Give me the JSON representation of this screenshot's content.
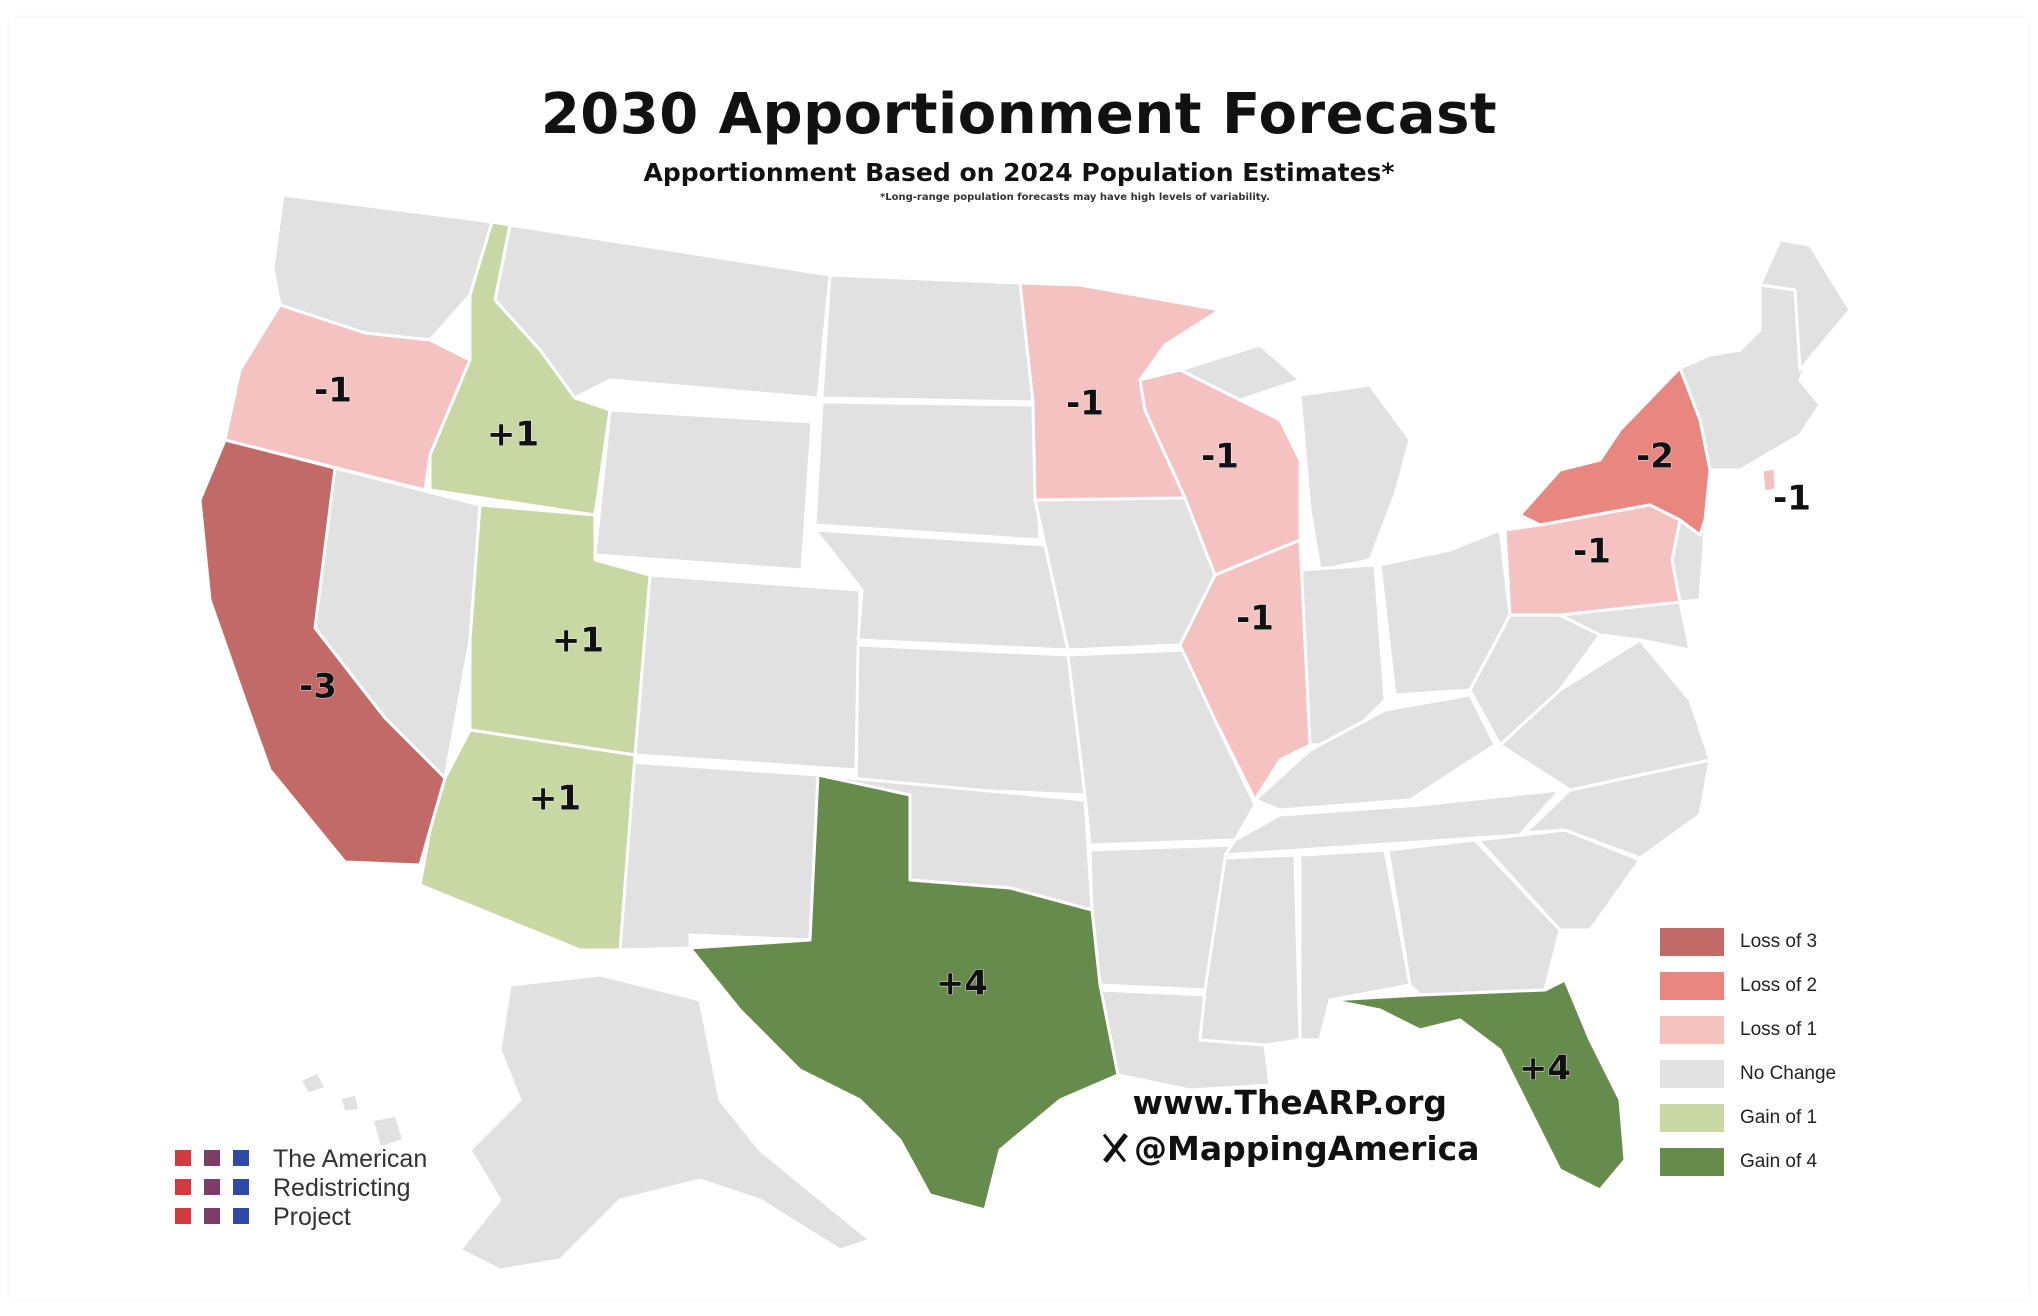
{
  "map": {
    "title": "2030 Apportionment Forecast",
    "subtitle": "Apportionment Based on 2024 Population Estimates*",
    "footnote": "*Long-range population forecasts may have high levels of variability."
  },
  "colors": {
    "loss3": "#c26a67",
    "loss2": "#e88680",
    "loss1": "#f4c2c1",
    "none": "#e1e1e1",
    "gain1": "#c9d7a5",
    "gain4": "#668b4c"
  },
  "states": [
    {
      "name": "Oregon",
      "change": -1,
      "label": "-1",
      "category": "loss1"
    },
    {
      "name": "Idaho",
      "change": 1,
      "label": "+1",
      "category": "gain1"
    },
    {
      "name": "California",
      "change": -3,
      "label": "-3",
      "category": "loss3"
    },
    {
      "name": "Utah",
      "change": 1,
      "label": "+1",
      "category": "gain1"
    },
    {
      "name": "Arizona",
      "change": 1,
      "label": "+1",
      "category": "gain1"
    },
    {
      "name": "Texas",
      "change": 4,
      "label": "+4",
      "category": "gain4"
    },
    {
      "name": "Minnesota",
      "change": -1,
      "label": "-1",
      "category": "loss1"
    },
    {
      "name": "Wisconsin",
      "change": -1,
      "label": "-1",
      "category": "loss1"
    },
    {
      "name": "Illinois",
      "change": -1,
      "label": "-1",
      "category": "loss1"
    },
    {
      "name": "New York",
      "change": -2,
      "label": "-2",
      "category": "loss2"
    },
    {
      "name": "Pennsylvania",
      "change": -1,
      "label": "-1",
      "category": "loss1"
    },
    {
      "name": "Rhode Island",
      "change": -1,
      "label": "-1",
      "category": "loss1"
    },
    {
      "name": "Florida",
      "change": 4,
      "label": "+4",
      "category": "gain4"
    }
  ],
  "legend": [
    {
      "label": "Loss of 3",
      "category": "loss3"
    },
    {
      "label": "Loss of 2",
      "category": "loss2"
    },
    {
      "label": "Loss of 1",
      "category": "loss1"
    },
    {
      "label": "No Change",
      "category": "none"
    },
    {
      "label": "Gain of 1",
      "category": "gain1"
    },
    {
      "label": "Gain of 4",
      "category": "gain4"
    }
  ],
  "credits": {
    "website": "www.TheARP.org",
    "handle": "@MappingAmerica",
    "handle_icon": "x-logo-icon"
  },
  "logo": {
    "lines": [
      "The American",
      "Redistricting",
      "Project"
    ],
    "square_colors": [
      "#d13a3f",
      "#7e3c68",
      "#2f49a6"
    ]
  }
}
